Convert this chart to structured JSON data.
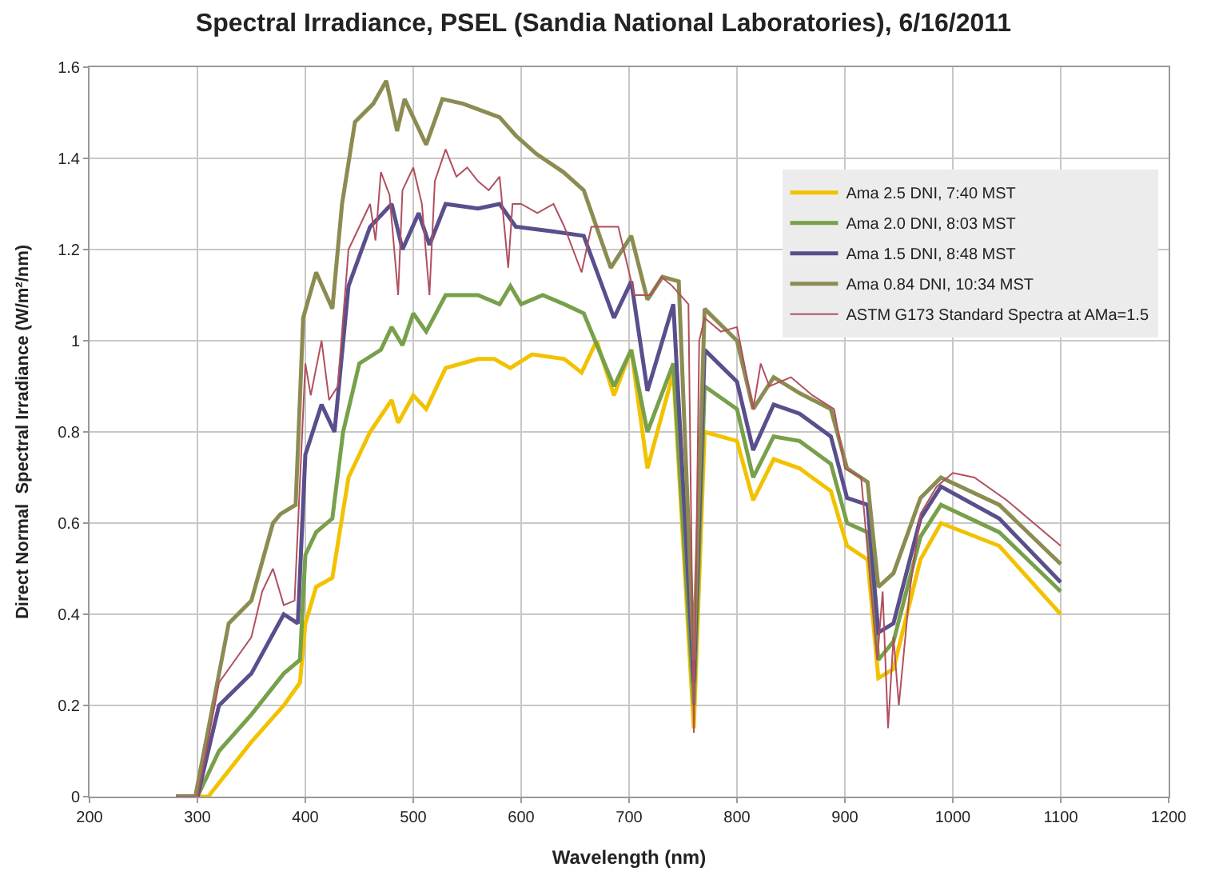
{
  "chart_data": {
    "type": "line",
    "title": "Spectral Irradiance, PSEL (Sandia National Laboratories), 6/16/2011",
    "xlabel": "Wavelength (nm)",
    "ylabel": "Direct Normal  Spectral Irradiance (W/m²/nm)",
    "xlim": [
      200,
      1200
    ],
    "xticks": [
      200,
      300,
      400,
      500,
      600,
      700,
      800,
      900,
      1000,
      1100,
      1200
    ],
    "ylim": [
      0,
      1.6
    ],
    "yticks": [
      {
        "value": 0,
        "label": "0"
      },
      0.2,
      0.4,
      0.6,
      0.8,
      {
        "value": 1,
        "label": "1"
      },
      1.2,
      1.4,
      1.6
    ],
    "grid": true,
    "legend": "top right",
    "marker": "none",
    "line_style": "solid",
    "series": [
      {
        "name": "Ama 2.5 DNI, 7:40 MST",
        "color": "#f2c200",
        "x": [
          280,
          300,
          310,
          330,
          350,
          380,
          395,
          400,
          410,
          425,
          440,
          460,
          480,
          486,
          500,
          512,
          530,
          560,
          575,
          590,
          610,
          640,
          656,
          670,
          686,
          702,
          717,
          741,
          760,
          770,
          800,
          815,
          834,
          858,
          887,
          902,
          921,
          931,
          945,
          970,
          989,
          1043,
          1100
        ],
        "values": [
          0,
          0,
          0,
          0.06,
          0.12,
          0.2,
          0.25,
          0.38,
          0.46,
          0.48,
          0.7,
          0.8,
          0.87,
          0.82,
          0.88,
          0.85,
          0.94,
          0.96,
          0.96,
          0.94,
          0.97,
          0.96,
          0.93,
          1.0,
          0.88,
          0.98,
          0.72,
          0.93,
          0.15,
          0.8,
          0.78,
          0.65,
          0.74,
          0.72,
          0.67,
          0.55,
          0.52,
          0.26,
          0.28,
          0.52,
          0.6,
          0.55,
          0.4
        ]
      },
      {
        "name": "Ama 2.0 DNI, 8:03 MST",
        "color": "#77a04a",
        "x": [
          280,
          300,
          320,
          350,
          380,
          395,
          400,
          410,
          425,
          435,
          450,
          470,
          480,
          490,
          500,
          512,
          530,
          560,
          580,
          590,
          600,
          620,
          640,
          658,
          686,
          702,
          717,
          741,
          760,
          770,
          800,
          815,
          834,
          858,
          887,
          902,
          921,
          931,
          945,
          970,
          989,
          1043,
          1100
        ],
        "values": [
          0,
          0,
          0.1,
          0.18,
          0.27,
          0.3,
          0.53,
          0.58,
          0.61,
          0.8,
          0.95,
          0.98,
          1.03,
          0.99,
          1.06,
          1.02,
          1.1,
          1.1,
          1.08,
          1.12,
          1.08,
          1.1,
          1.08,
          1.06,
          0.9,
          0.98,
          0.8,
          0.95,
          0.2,
          0.9,
          0.85,
          0.7,
          0.79,
          0.78,
          0.73,
          0.6,
          0.58,
          0.3,
          0.34,
          0.57,
          0.64,
          0.58,
          0.45
        ]
      },
      {
        "name": "Ama 1.5 DNI, 8:48 MST",
        "color": "#5a4f8c",
        "x": [
          280,
          300,
          320,
          350,
          380,
          393,
          400,
          415,
          427,
          440,
          460,
          480,
          490,
          505,
          515,
          530,
          560,
          580,
          595,
          629,
          658,
          686,
          702,
          717,
          741,
          760,
          770,
          800,
          815,
          834,
          858,
          887,
          902,
          921,
          931,
          945,
          970,
          989,
          1043,
          1100
        ],
        "values": [
          0,
          0,
          0.2,
          0.27,
          0.4,
          0.38,
          0.75,
          0.86,
          0.8,
          1.12,
          1.25,
          1.3,
          1.2,
          1.28,
          1.21,
          1.3,
          1.29,
          1.3,
          1.25,
          1.24,
          1.23,
          1.05,
          1.13,
          0.89,
          1.08,
          0.25,
          0.98,
          0.91,
          0.76,
          0.86,
          0.84,
          0.79,
          0.655,
          0.64,
          0.36,
          0.38,
          0.61,
          0.68,
          0.61,
          0.47
        ]
      },
      {
        "name": "Ama 0.84 DNI, 10:34 MST",
        "color": "#8c8c52",
        "x": [
          280,
          298,
          329,
          350,
          370,
          377,
          391,
          398,
          410,
          425,
          434,
          446,
          463,
          475,
          485,
          492,
          512,
          527,
          546,
          580,
          595,
          614,
          639,
          658,
          683,
          702,
          717,
          731,
          746,
          760,
          770,
          800,
          815,
          834,
          858,
          887,
          902,
          921,
          931,
          945,
          970,
          989,
          1043,
          1100
        ],
        "values": [
          0,
          0,
          0.38,
          0.43,
          0.6,
          0.62,
          0.64,
          1.05,
          1.15,
          1.07,
          1.3,
          1.48,
          1.52,
          1.57,
          1.46,
          1.53,
          1.43,
          1.53,
          1.52,
          1.49,
          1.45,
          1.41,
          1.37,
          1.33,
          1.16,
          1.23,
          1.09,
          1.14,
          1.13,
          0.3,
          1.07,
          1.0,
          0.85,
          0.92,
          0.885,
          0.85,
          0.72,
          0.69,
          0.46,
          0.49,
          0.655,
          0.7,
          0.64,
          0.51
        ]
      },
      {
        "name": "ASTM G173 Standard Spectra at AMa=1.5",
        "color": "#b0505e",
        "x": [
          280,
          300,
          320,
          335,
          350,
          360,
          370,
          380,
          390,
          400,
          405,
          415,
          422,
          430,
          440,
          450,
          460,
          465,
          470,
          478,
          486,
          490,
          500,
          508,
          515,
          520,
          530,
          540,
          550,
          560,
          570,
          580,
          588,
          592,
          600,
          615,
          630,
          640,
          656,
          665,
          690,
          705,
          720,
          730,
          740,
          755,
          760,
          765,
          770,
          785,
          800,
          815,
          822,
          830,
          850,
          870,
          890,
          900,
          915,
          930,
          935,
          940,
          945,
          950,
          960,
          970,
          985,
          1000,
          1020,
          1050,
          1075,
          1100
        ],
        "values": [
          0,
          0,
          0.25,
          0.3,
          0.35,
          0.45,
          0.5,
          0.42,
          0.43,
          0.95,
          0.88,
          1.0,
          0.87,
          0.9,
          1.2,
          1.25,
          1.3,
          1.22,
          1.37,
          1.32,
          1.1,
          1.33,
          1.38,
          1.3,
          1.1,
          1.35,
          1.42,
          1.36,
          1.38,
          1.35,
          1.33,
          1.36,
          1.16,
          1.3,
          1.3,
          1.28,
          1.3,
          1.25,
          1.15,
          1.25,
          1.25,
          1.1,
          1.1,
          1.14,
          1.12,
          1.08,
          0.14,
          1.0,
          1.05,
          1.02,
          1.03,
          0.85,
          0.95,
          0.9,
          0.92,
          0.88,
          0.85,
          0.72,
          0.7,
          0.3,
          0.45,
          0.15,
          0.35,
          0.2,
          0.45,
          0.62,
          0.68,
          0.71,
          0.7,
          0.65,
          0.6,
          0.55
        ]
      }
    ]
  }
}
